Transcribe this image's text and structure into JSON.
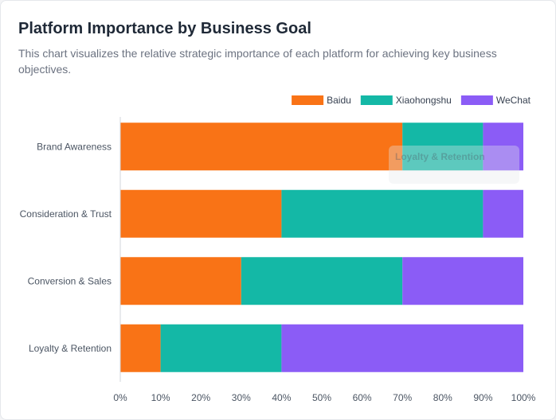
{
  "header": {
    "title": "Platform Importance by Business Goal",
    "subtitle": "This chart visualizes the relative strategic importance of each platform for achieving key business objectives."
  },
  "tooltip": {
    "text": "Loyalty & Retention"
  },
  "chart_data": {
    "type": "bar",
    "orientation": "horizontal",
    "stacked": true,
    "categories": [
      "Brand Awareness",
      "Consideration & Trust",
      "Conversion & Sales",
      "Loyalty & Retention"
    ],
    "series": [
      {
        "name": "Baidu",
        "color": "#f97316",
        "values": [
          70,
          40,
          30,
          10
        ]
      },
      {
        "name": "Xiaohongshu",
        "color": "#14b8a6",
        "values": [
          20,
          50,
          40,
          30
        ]
      },
      {
        "name": "WeChat",
        "color": "#8b5cf6",
        "values": [
          10,
          10,
          30,
          60
        ]
      }
    ],
    "xlim": [
      0,
      100
    ],
    "xticks": [
      "0%",
      "10%",
      "20%",
      "30%",
      "40%",
      "50%",
      "60%",
      "70%",
      "80%",
      "90%",
      "100%"
    ],
    "legend_position": "top-right",
    "grid": false
  }
}
